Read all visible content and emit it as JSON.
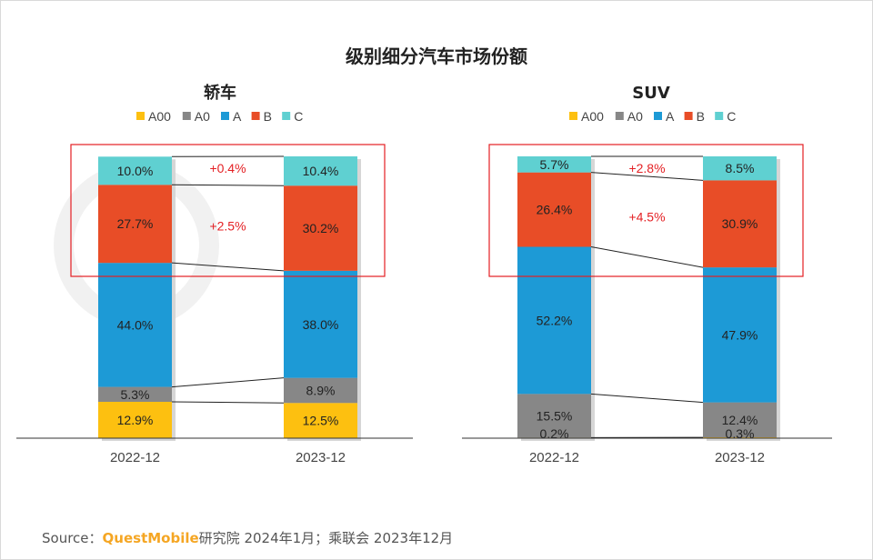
{
  "title": "级别细分汽车市场份额",
  "source": {
    "prefix": "Source：",
    "brand": "QuestMobile",
    "suffix": "研究院 2024年1月；乘联会 2023年12月"
  },
  "colors": {
    "A00": "#fdc010",
    "A0": "#878787",
    "A": "#1d9ad6",
    "B": "#e84d27",
    "C": "#5fd0d1",
    "highlight": "#e41f23",
    "delta": "#e41f23"
  },
  "chart_data": [
    {
      "type": "bar",
      "stacked": true,
      "title": "轿车",
      "categories": [
        "2022-12",
        "2023-12"
      ],
      "series": [
        {
          "name": "A00",
          "values": [
            12.9,
            12.5
          ],
          "labels": [
            "12.9%",
            "12.5%"
          ]
        },
        {
          "name": "A0",
          "values": [
            5.3,
            8.9
          ],
          "labels": [
            "5.3%",
            "8.9%"
          ]
        },
        {
          "name": "A",
          "values": [
            44.0,
            38.0
          ],
          "labels": [
            "44.0%",
            "38.0%"
          ]
        },
        {
          "name": "B",
          "values": [
            27.7,
            30.2
          ],
          "labels": [
            "27.7%",
            "30.2%"
          ]
        },
        {
          "name": "C",
          "values": [
            10.0,
            10.4
          ],
          "labels": [
            "10.0%",
            "10.4%"
          ]
        }
      ],
      "annotations": [
        {
          "series": "C",
          "text": "+0.4%"
        },
        {
          "series": "B",
          "text": "+2.5%"
        }
      ],
      "ylim": [
        0,
        100
      ],
      "legend": "top"
    },
    {
      "type": "bar",
      "stacked": true,
      "title": "SUV",
      "categories": [
        "2022-12",
        "2023-12"
      ],
      "series": [
        {
          "name": "A00",
          "values": [
            0.2,
            0.3
          ],
          "labels": [
            "0.2%",
            "0.3%"
          ]
        },
        {
          "name": "A0",
          "values": [
            15.5,
            12.4
          ],
          "labels": [
            "15.5%",
            "12.4%"
          ]
        },
        {
          "name": "A",
          "values": [
            52.2,
            47.9
          ],
          "labels": [
            "52.2%",
            "47.9%"
          ]
        },
        {
          "name": "B",
          "values": [
            26.4,
            30.9
          ],
          "labels": [
            "26.4%",
            "30.9%"
          ]
        },
        {
          "name": "C",
          "values": [
            5.7,
            8.5
          ],
          "labels": [
            "5.7%",
            "8.5%"
          ]
        }
      ],
      "annotations": [
        {
          "series": "C",
          "text": "+2.8%"
        },
        {
          "series": "B",
          "text": "+4.5%"
        }
      ],
      "ylim": [
        0,
        100
      ],
      "legend": "top"
    }
  ]
}
